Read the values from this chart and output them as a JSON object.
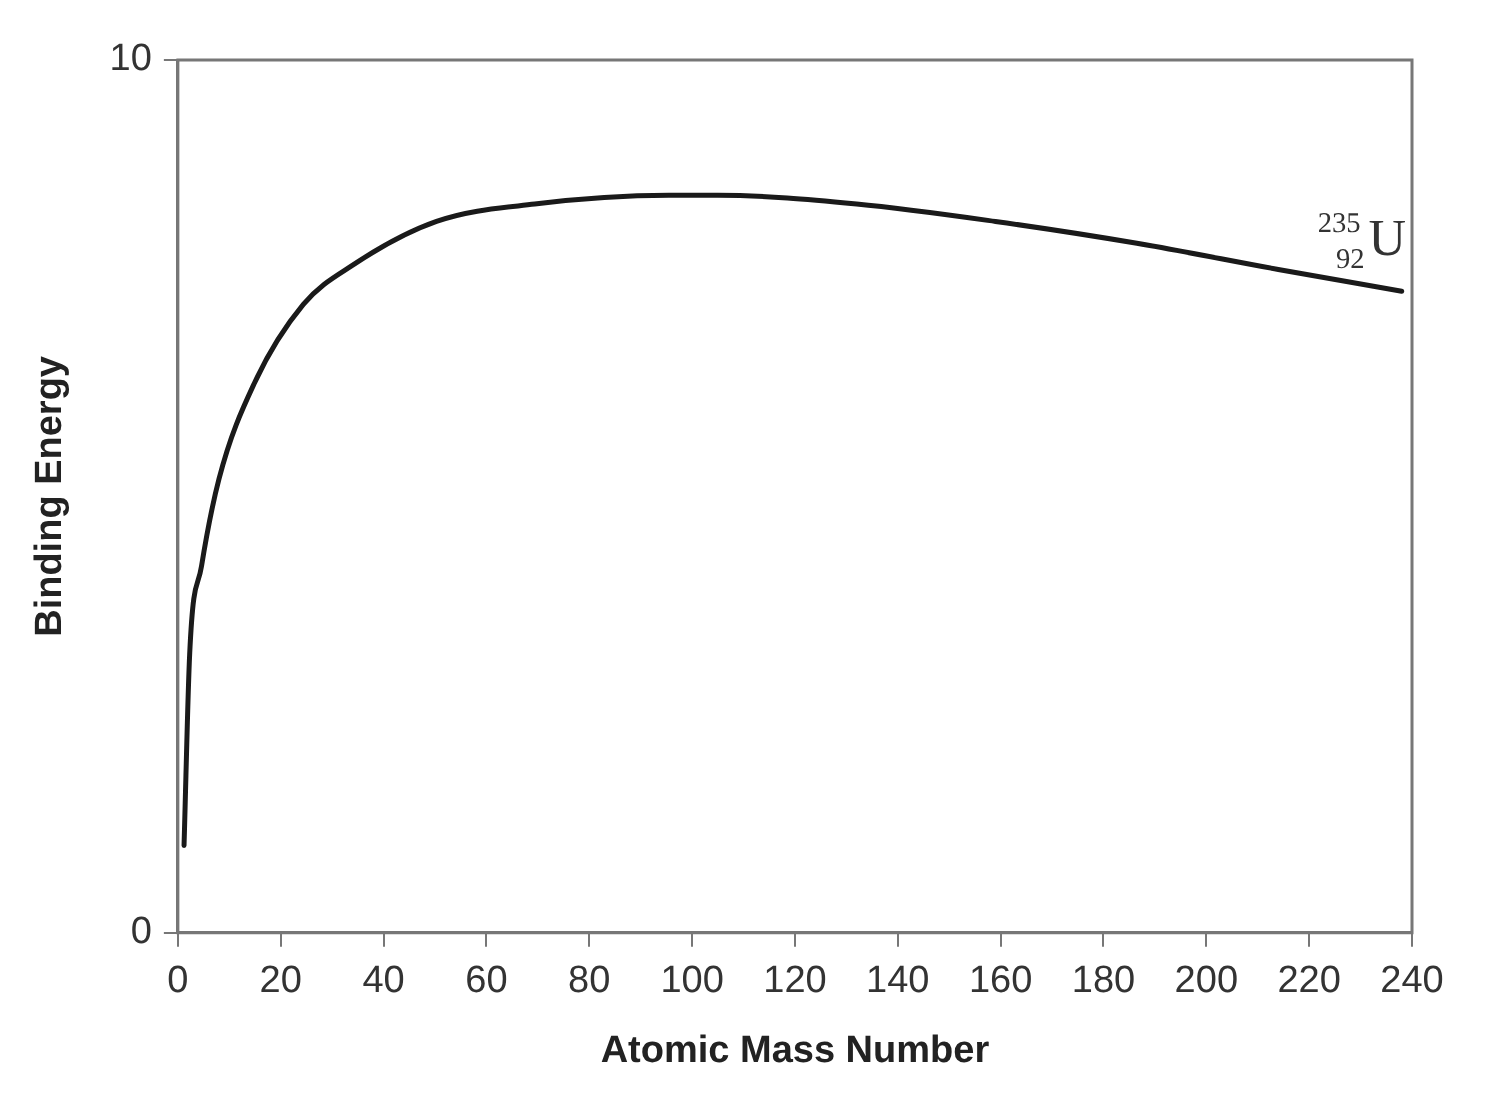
{
  "chart_data": {
    "type": "line",
    "xlabel": "Atomic Mass Number",
    "ylabel": "Binding Energy",
    "x": [
      1.2,
      2.3,
      4.6,
      8,
      14.9,
      24.4,
      34,
      50.3,
      69.4,
      95.5,
      105,
      132,
      159,
      186.5,
      214,
      238
    ],
    "series": [
      {
        "color": "#1a1a1a",
        "values": [
          1.0,
          3.2,
          4.2,
          5.2,
          6.3,
          7.2,
          7.65,
          8.15,
          8.35,
          8.45,
          8.45,
          8.35,
          8.15,
          7.9,
          7.6,
          7.35
        ]
      }
    ],
    "xlim": [
      0,
      240
    ],
    "xticks": [
      0,
      20,
      40,
      60,
      80,
      100,
      120,
      140,
      160,
      180,
      200,
      220,
      240
    ],
    "ylim": [
      0,
      10
    ],
    "yticks": [
      0,
      10
    ],
    "grid": false,
    "legend": false,
    "marker": "none",
    "line_style": "solid",
    "annotations": [
      {
        "text": "$^{235}$$_{92}$U",
        "x": 238,
        "y": 7.35
      }
    ]
  }
}
